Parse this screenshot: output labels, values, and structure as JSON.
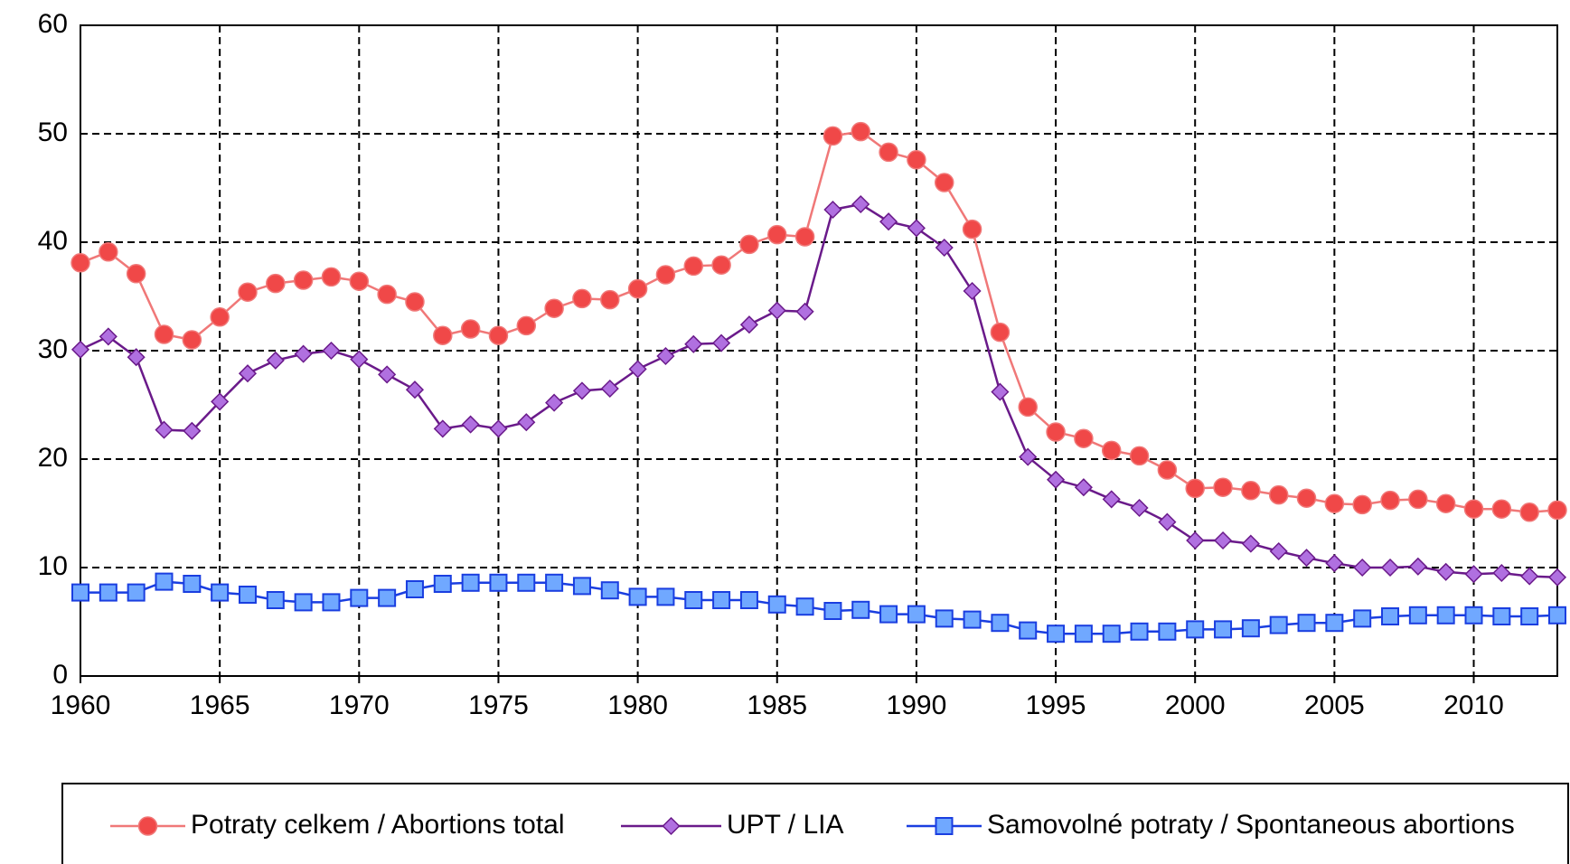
{
  "chart_data": {
    "type": "line",
    "x": [
      1960,
      1961,
      1962,
      1963,
      1964,
      1965,
      1966,
      1967,
      1968,
      1969,
      1970,
      1971,
      1972,
      1973,
      1974,
      1975,
      1976,
      1977,
      1978,
      1979,
      1980,
      1981,
      1982,
      1983,
      1984,
      1985,
      1986,
      1987,
      1988,
      1989,
      1990,
      1991,
      1992,
      1993,
      1994,
      1995,
      1996,
      1997,
      1998,
      1999,
      2000,
      2001,
      2002,
      2003,
      2004,
      2005,
      2006,
      2007,
      2008,
      2009,
      2010,
      2011,
      2012,
      2013
    ],
    "series": [
      {
        "name": "Potraty celkem / Abortions total",
        "color": "#f04848",
        "line_color": "#f07878",
        "marker": "circle",
        "values": [
          38.1,
          39.1,
          37.1,
          31.5,
          31.0,
          33.1,
          35.4,
          36.2,
          36.5,
          36.8,
          36.4,
          35.2,
          34.5,
          31.4,
          32.0,
          31.4,
          32.3,
          33.9,
          34.8,
          34.7,
          35.7,
          37.0,
          37.8,
          37.9,
          39.8,
          40.7,
          40.5,
          49.8,
          50.2,
          48.3,
          47.6,
          45.5,
          41.2,
          31.7,
          24.8,
          22.5,
          21.9,
          20.8,
          20.3,
          19.0,
          17.3,
          17.4,
          17.1,
          16.7,
          16.4,
          15.9,
          15.8,
          16.2,
          16.3,
          15.9,
          15.4,
          15.4,
          15.1,
          15.3
        ]
      },
      {
        "name": "UPT / LIA",
        "color": "#b070e0",
        "line_color": "#6a1a8a",
        "marker": "diamond",
        "values": [
          30.1,
          31.3,
          29.4,
          22.7,
          22.6,
          25.3,
          27.9,
          29.1,
          29.7,
          30.0,
          29.2,
          27.8,
          26.4,
          22.8,
          23.2,
          22.8,
          23.4,
          25.2,
          26.3,
          26.5,
          28.3,
          29.5,
          30.6,
          30.7,
          32.4,
          33.7,
          33.6,
          43.0,
          43.5,
          41.9,
          41.3,
          39.5,
          35.5,
          26.2,
          20.2,
          18.1,
          17.4,
          16.3,
          15.5,
          14.2,
          12.5,
          12.5,
          12.2,
          11.5,
          10.9,
          10.4,
          10.0,
          10.0,
          10.1,
          9.6,
          9.4,
          9.5,
          9.2,
          9.1
        ]
      },
      {
        "name": "Samovolné potraty / Spontaneous abortions",
        "color": "#70a8ff",
        "line_color": "#1a3ee0",
        "marker": "square",
        "values": [
          7.7,
          7.7,
          7.7,
          8.7,
          8.5,
          7.7,
          7.5,
          7.0,
          6.8,
          6.8,
          7.2,
          7.2,
          8.0,
          8.5,
          8.6,
          8.6,
          8.6,
          8.6,
          8.3,
          7.9,
          7.3,
          7.3,
          7.0,
          7.0,
          7.0,
          6.6,
          6.4,
          6.0,
          6.1,
          5.7,
          5.7,
          5.3,
          5.2,
          4.9,
          4.2,
          3.9,
          3.9,
          3.9,
          4.1,
          4.1,
          4.3,
          4.3,
          4.4,
          4.7,
          4.9,
          4.9,
          5.3,
          5.5,
          5.6,
          5.6,
          5.6,
          5.5,
          5.5,
          5.6
        ]
      }
    ],
    "xlim": [
      1960,
      2013
    ],
    "xticks": [
      1960,
      1965,
      1970,
      1975,
      1980,
      1985,
      1990,
      1995,
      2000,
      2005,
      2010
    ],
    "ylim": [
      0,
      60
    ],
    "yticks": [
      0,
      10,
      20,
      30,
      40,
      50,
      60
    ],
    "grid": true,
    "legend": "bottom"
  }
}
